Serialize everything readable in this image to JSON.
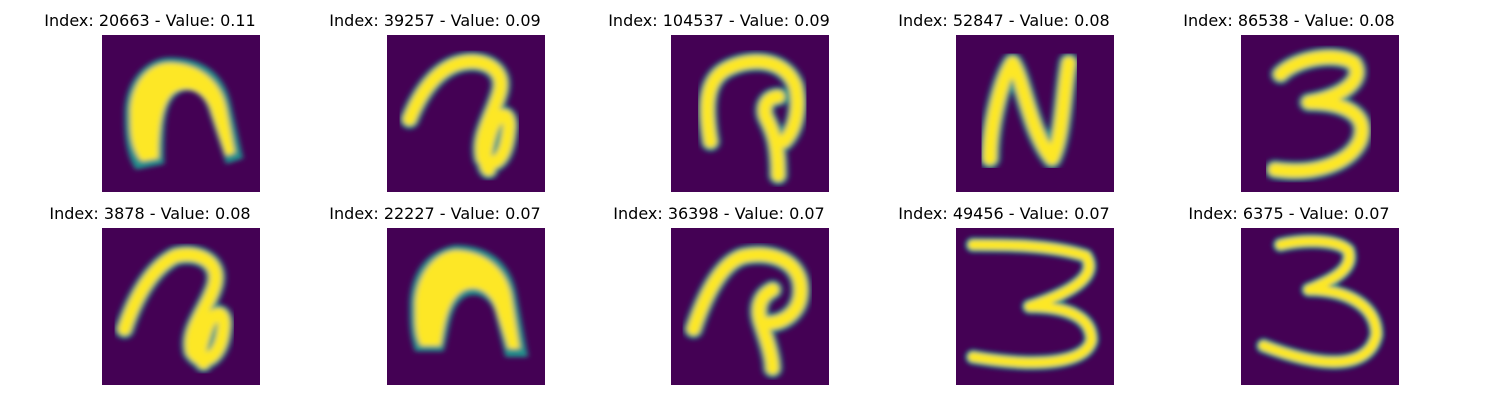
{
  "colormap": {
    "background": "#440154",
    "mid": "#21918c",
    "high": "#fde725"
  },
  "samples": [
    {
      "title": "Index: 20663 - Value: 0.11",
      "glyph": "blob-arch-icon"
    },
    {
      "title": "Index: 39257 - Value: 0.09",
      "glyph": "handwritten-a-loop-icon"
    },
    {
      "title": "Index: 104537 - Value: 0.09",
      "glyph": "handwritten-p-hook-icon"
    },
    {
      "title": "Index: 52847 - Value: 0.08",
      "glyph": "handwritten-n-icon"
    },
    {
      "title": "Index: 86538 - Value: 0.08",
      "glyph": "handwritten-3-icon"
    },
    {
      "title": "Index: 3878 - Value: 0.08",
      "glyph": "handwritten-a-loop-icon"
    },
    {
      "title": "Index: 22227 - Value: 0.07",
      "glyph": "blob-arch-icon"
    },
    {
      "title": "Index: 36398 - Value: 0.07",
      "glyph": "handwritten-p-hook-icon"
    },
    {
      "title": "Index: 49456 - Value: 0.07",
      "glyph": "handwritten-3-wide-icon"
    },
    {
      "title": "Index: 6375 - Value: 0.07",
      "glyph": "handwritten-3-icon"
    }
  ]
}
